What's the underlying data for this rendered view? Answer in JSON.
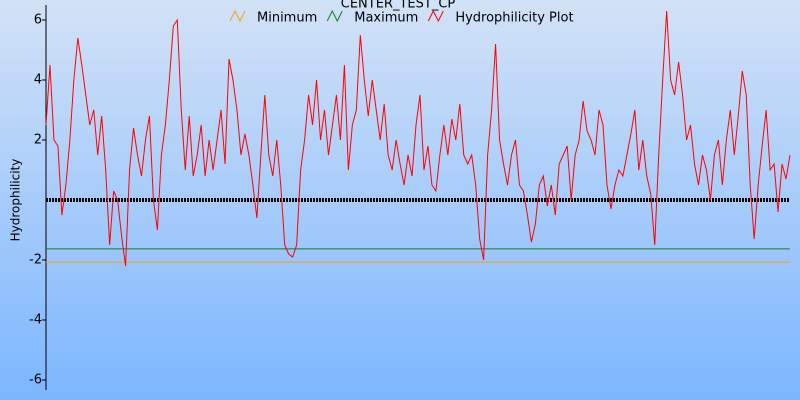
{
  "chart_data": {
    "type": "line",
    "title": "CENTER_TEST_CP",
    "y_label": "Hydrophilicity",
    "ylim": [
      -6.3,
      6.5
    ],
    "yticks": [
      6,
      4,
      2,
      -2,
      -4,
      -6
    ],
    "series": [
      {
        "name": "Minimum",
        "color": "#f0a020",
        "value": -2.07
      },
      {
        "name": "Maximum",
        "color": "#108020",
        "value": -1.63
      },
      {
        "name": "Hydrophilicity Plot",
        "color": "#ff0000",
        "values": [
          2.5,
          4.5,
          2,
          1.8,
          -0.5,
          0.5,
          2,
          4,
          5.4,
          4.5,
          3.5,
          2.5,
          3,
          1.5,
          2.8,
          1,
          -1.5,
          0.3,
          0,
          -1.2,
          -2.2,
          1,
          2.4,
          1.5,
          0.8,
          2,
          2.8,
          0,
          -1,
          1.5,
          2.5,
          4,
          5.8,
          6,
          3,
          1,
          2.8,
          0.8,
          1.5,
          2.5,
          0.8,
          2,
          1,
          2,
          3,
          1.2,
          4.7,
          4,
          3,
          1.5,
          2.2,
          1.5,
          0.5,
          -0.6,
          1.5,
          3.5,
          1.5,
          0.8,
          2,
          0.5,
          -1.5,
          -1.8,
          -1.9,
          -1.5,
          1,
          2,
          3.5,
          2.5,
          4,
          2,
          3,
          1.5,
          2.5,
          3.5,
          2,
          4.5,
          1,
          2.5,
          3,
          5.5,
          4,
          2.8,
          4,
          3,
          2,
          3.2,
          1.5,
          1,
          2,
          1.2,
          0.5,
          1.5,
          0.8,
          2.5,
          3.5,
          1,
          1.8,
          0.5,
          0.3,
          1.5,
          2.5,
          1.5,
          2.7,
          2,
          3.2,
          1.5,
          1.2,
          1.5,
          0.5,
          -1.3,
          -2,
          1.5,
          3,
          5.2,
          2,
          1.2,
          0.5,
          1.5,
          2,
          0.5,
          0.3,
          -0.5,
          -1.4,
          -0.8,
          0.5,
          0.8,
          -0.2,
          0.5,
          -0.5,
          1.2,
          1.5,
          1.8,
          0,
          1.5,
          2,
          3.3,
          2.3,
          2,
          1.5,
          3,
          2.5,
          0.5,
          -0.3,
          0.5,
          1,
          0.8,
          1.5,
          2.2,
          3,
          1,
          2,
          0.8,
          0.2,
          -1.5,
          1.5,
          4,
          6.3,
          4,
          3.5,
          4.6,
          3.5,
          2,
          2.5,
          1.2,
          0.5,
          1.5,
          1,
          0,
          1.5,
          2,
          0.5,
          2,
          3,
          1.5,
          2.8,
          4.3,
          3.5,
          0.5,
          -1.3,
          0.5,
          1.8,
          3,
          1,
          1.2,
          -0.4,
          1.2,
          0.7,
          1.5
        ]
      }
    ]
  }
}
